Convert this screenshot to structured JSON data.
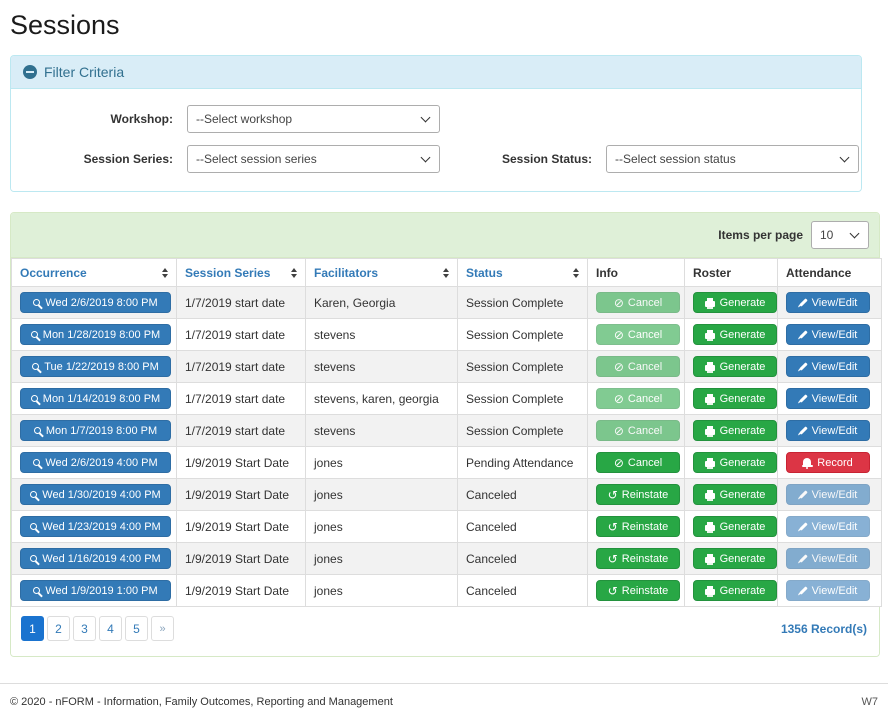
{
  "page": {
    "title": "Sessions"
  },
  "filter": {
    "heading": "Filter Criteria",
    "workshop_label": "Workshop:",
    "workshop_value": "--Select workshop",
    "series_label": "Session Series:",
    "series_value": "--Select session series",
    "status_label": "Session Status:",
    "status_value": "--Select session status"
  },
  "toolbar": {
    "items_per_page_label": "Items per page",
    "items_per_page_value": "10"
  },
  "table": {
    "columns": [
      {
        "label": "Occurrence",
        "sortable": true
      },
      {
        "label": "Session Series",
        "sortable": true
      },
      {
        "label": "Facilitators",
        "sortable": true
      },
      {
        "label": "Status",
        "sortable": true
      },
      {
        "label": "Info",
        "sortable": false
      },
      {
        "label": "Roster",
        "sortable": false
      },
      {
        "label": "Attendance",
        "sortable": false
      }
    ],
    "rows": [
      {
        "occurrence": "Wed 2/6/2019 8:00 PM",
        "series": "1/7/2019 start date",
        "facilitators": "Karen, Georgia",
        "status": "Session Complete",
        "info": "Cancel",
        "roster": "Generate",
        "attendance": "View/Edit"
      },
      {
        "occurrence": "Mon 1/28/2019 8:00 PM",
        "series": "1/7/2019 start date",
        "facilitators": "stevens",
        "status": "Session Complete",
        "info": "Cancel",
        "roster": "Generate",
        "attendance": "View/Edit"
      },
      {
        "occurrence": "Tue 1/22/2019 8:00 PM",
        "series": "1/7/2019 start date",
        "facilitators": "stevens",
        "status": "Session Complete",
        "info": "Cancel",
        "roster": "Generate",
        "attendance": "View/Edit"
      },
      {
        "occurrence": "Mon 1/14/2019 8:00 PM",
        "series": "1/7/2019 start date",
        "facilitators": "stevens, karen, georgia",
        "status": "Session Complete",
        "info": "Cancel",
        "roster": "Generate",
        "attendance": "View/Edit"
      },
      {
        "occurrence": "Mon 1/7/2019 8:00 PM",
        "series": "1/7/2019 start date",
        "facilitators": "stevens",
        "status": "Session Complete",
        "info": "Cancel",
        "roster": "Generate",
        "attendance": "View/Edit"
      },
      {
        "occurrence": "Wed 2/6/2019 4:00 PM",
        "series": "1/9/2019 Start Date",
        "facilitators": "jones",
        "status": "Pending Attendance",
        "info": "Cancel",
        "roster": "Generate",
        "attendance": "Record"
      },
      {
        "occurrence": "Wed 1/30/2019 4:00 PM",
        "series": "1/9/2019 Start Date",
        "facilitators": "jones",
        "status": "Canceled",
        "info": "Reinstate",
        "roster": "Generate",
        "attendance": "View/Edit"
      },
      {
        "occurrence": "Wed 1/23/2019 4:00 PM",
        "series": "1/9/2019 Start Date",
        "facilitators": "jones",
        "status": "Canceled",
        "info": "Reinstate",
        "roster": "Generate",
        "attendance": "View/Edit"
      },
      {
        "occurrence": "Wed 1/16/2019 4:00 PM",
        "series": "1/9/2019 Start Date",
        "facilitators": "jones",
        "status": "Canceled",
        "info": "Reinstate",
        "roster": "Generate",
        "attendance": "View/Edit"
      },
      {
        "occurrence": "Wed 1/9/2019 1:00 PM",
        "series": "1/9/2019 Start Date",
        "facilitators": "jones",
        "status": "Canceled",
        "info": "Reinstate",
        "roster": "Generate",
        "attendance": "View/Edit"
      }
    ]
  },
  "pagination": {
    "pages": [
      "1",
      "2",
      "3",
      "4",
      "5",
      "»"
    ],
    "active_page": "1",
    "records_label": "1356 Record(s)"
  },
  "footer": {
    "copyright": "© 2020 - nFORM - Information, Family Outcomes, Reporting and Management",
    "code": "W7"
  },
  "colors": {
    "accent_blue": "#337ab7",
    "success_green": "#28a745",
    "danger_red": "#dc3545",
    "info_heading_bg": "#d9edf7",
    "info_text": "#31708f",
    "success_heading_bg": "#dff0d8"
  }
}
